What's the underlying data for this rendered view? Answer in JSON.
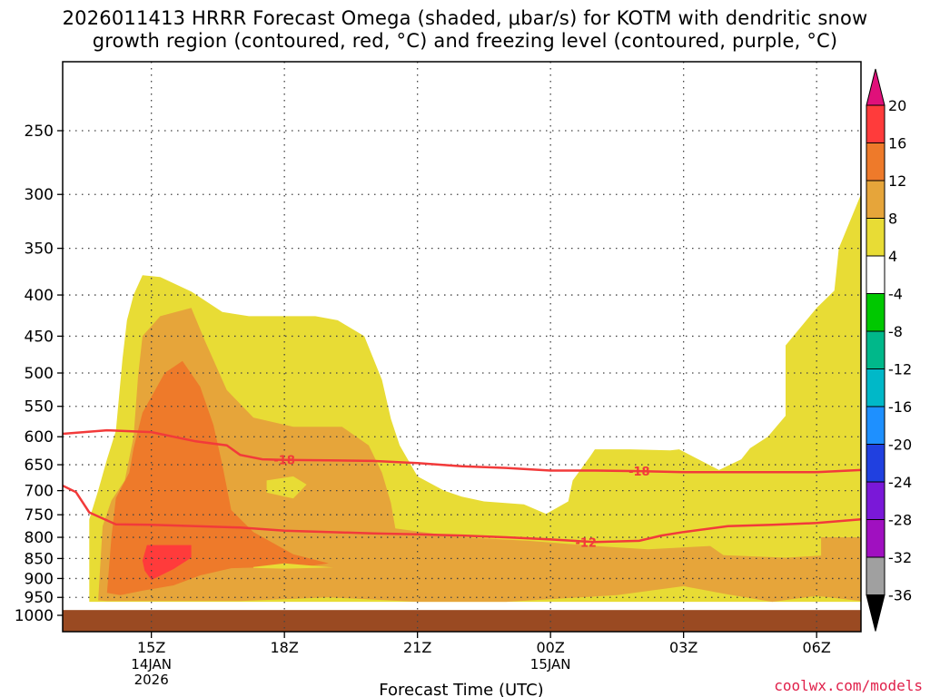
{
  "title_line1": "2026011413 HRRR Forecast Omega (shaded, μbar/s) for KOTM with dendritic snow",
  "title_line2": "growth region (contoured, red, °C) and freezing level (contoured, purple, °C)",
  "credit": "coolwx.com/models",
  "chart_data": {
    "type": "heatmap",
    "title": "2026011413 HRRR Forecast Omega (shaded, μbar/s) for KOTM with dendritic snow growth region (contoured, red, °C) and freezing level (contoured, purple, °C)",
    "xlabel": "Forecast Time (UTC)",
    "ylabel": "",
    "x_unit": "hours from 2026-01-14 13Z",
    "xlim": [
      0,
      18
    ],
    "ylim": [
      1000,
      200
    ],
    "y_scale": "log",
    "grid": true,
    "x_ticks": [
      {
        "x": 2,
        "label": "15Z",
        "sub": [
          "14JAN",
          "2026"
        ]
      },
      {
        "x": 5,
        "label": "18Z",
        "sub": []
      },
      {
        "x": 8,
        "label": "21Z",
        "sub": []
      },
      {
        "x": 11,
        "label": "00Z",
        "sub": [
          "15JAN"
        ]
      },
      {
        "x": 14,
        "label": "03Z",
        "sub": []
      },
      {
        "x": 17,
        "label": "06Z",
        "sub": []
      }
    ],
    "y_ticks": [
      250,
      300,
      350,
      400,
      450,
      500,
      550,
      600,
      650,
      700,
      750,
      800,
      850,
      900,
      950,
      1000
    ],
    "colorbar": {
      "unit": "μbar/s",
      "levels": [
        {
          "label": "20",
          "color": "#ff3b3b"
        },
        {
          "label": "16",
          "color": "#ee7a2a"
        },
        {
          "label": "12",
          "color": "#e6a53a"
        },
        {
          "label": "8",
          "color": "#e8dc35"
        },
        {
          "label": "4",
          "color": "#ffffff"
        },
        {
          "label": "-4",
          "color": "#00c800"
        },
        {
          "label": "-8",
          "color": "#00b88a"
        },
        {
          "label": "-12",
          "color": "#00b8c8"
        },
        {
          "label": "-16",
          "color": "#1e90ff"
        },
        {
          "label": "-20",
          "color": "#2040e0"
        },
        {
          "label": "-24",
          "color": "#7a18d8"
        },
        {
          "label": "-28",
          "color": "#a010c0"
        },
        {
          "label": "-32",
          "color": "#a0a0a0"
        },
        {
          "label": "-36",
          "color": ""
        }
      ],
      "top_arrow_color": "#e0107a",
      "bottom_arrow_color": "#000000"
    },
    "ground_color": "#9a4a22",
    "regions": [
      {
        "band": "4-8",
        "color": "#e8dc35",
        "polygon": [
          [
            0.6,
            962
          ],
          [
            0.6,
            760
          ],
          [
            0.8,
            700
          ],
          [
            1.0,
            640
          ],
          [
            1.2,
            590
          ],
          [
            1.35,
            480
          ],
          [
            1.45,
            430
          ],
          [
            1.6,
            400
          ],
          [
            1.8,
            378
          ],
          [
            2.2,
            380
          ],
          [
            2.9,
            396
          ],
          [
            3.6,
            420
          ],
          [
            4.2,
            425
          ],
          [
            5.7,
            425
          ],
          [
            6.2,
            430
          ],
          [
            6.8,
            450
          ],
          [
            7.2,
            510
          ],
          [
            7.4,
            570
          ],
          [
            7.6,
            615
          ],
          [
            8.0,
            672
          ],
          [
            8.6,
            700
          ],
          [
            9.0,
            712
          ],
          [
            9.5,
            722
          ],
          [
            10.4,
            728
          ],
          [
            10.9,
            748
          ],
          [
            11.4,
            722
          ],
          [
            11.5,
            680
          ],
          [
            11.9,
            634
          ],
          [
            12.0,
            622
          ],
          [
            12.8,
            622
          ],
          [
            13.7,
            624
          ],
          [
            13.9,
            622
          ],
          [
            14.8,
            660
          ],
          [
            15.3,
            640
          ],
          [
            15.5,
            620
          ],
          [
            15.9,
            600
          ],
          [
            16.3,
            565
          ],
          [
            16.3,
            462
          ],
          [
            16.8,
            428
          ],
          [
            17.0,
            415
          ],
          [
            17.4,
            395
          ],
          [
            17.5,
            350
          ],
          [
            18,
            300
          ],
          [
            18,
            962
          ]
        ]
      },
      {
        "band": "8-12",
        "color": "#e6a53a",
        "polygon": [
          [
            0.8,
            958
          ],
          [
            0.9,
            775
          ],
          [
            1.1,
            720
          ],
          [
            1.4,
            680
          ],
          [
            1.6,
            600
          ],
          [
            1.7,
            505
          ],
          [
            1.8,
            450
          ],
          [
            2.2,
            425
          ],
          [
            2.9,
            415
          ],
          [
            3.2,
            455
          ],
          [
            3.7,
            525
          ],
          [
            4.3,
            568
          ],
          [
            5.2,
            583
          ],
          [
            6.3,
            583
          ],
          [
            6.9,
            615
          ],
          [
            7.2,
            665
          ],
          [
            7.4,
            725
          ],
          [
            7.5,
            780
          ],
          [
            9.0,
            800
          ],
          [
            10.5,
            808
          ],
          [
            12.0,
            820
          ],
          [
            13.2,
            828
          ],
          [
            14.6,
            820
          ],
          [
            14.9,
            842
          ],
          [
            16.3,
            848
          ],
          [
            17.1,
            843
          ],
          [
            17.1,
            800
          ],
          [
            18,
            800
          ],
          [
            18,
            960
          ],
          [
            17,
            946
          ],
          [
            16,
            962
          ],
          [
            15,
            942
          ],
          [
            14,
            920
          ],
          [
            12.5,
            944
          ],
          [
            10.0,
            962
          ],
          [
            8.0,
            962
          ],
          [
            6.0,
            950
          ],
          [
            4.0,
            960
          ],
          [
            2.0,
            960
          ],
          [
            1.0,
            960
          ]
        ],
        "holes": [
          [
            [
              4.6,
              680
            ],
            [
              5.2,
              672
            ],
            [
              5.5,
              688
            ],
            [
              5.2,
              716
            ],
            [
              4.6,
              704
            ]
          ]
        ]
      },
      {
        "band": "12-16",
        "color": "#ee7a2a",
        "polygon": [
          [
            1.0,
            938
          ],
          [
            1.1,
            800
          ],
          [
            1.2,
            715
          ],
          [
            1.5,
            665
          ],
          [
            1.6,
            620
          ],
          [
            1.8,
            560
          ],
          [
            2.3,
            500
          ],
          [
            2.7,
            483
          ],
          [
            3.1,
            520
          ],
          [
            3.4,
            580
          ],
          [
            3.6,
            650
          ],
          [
            3.8,
            740
          ],
          [
            4.3,
            788
          ],
          [
            5.2,
            840
          ],
          [
            6.0,
            862
          ],
          [
            5.6,
            868
          ],
          [
            3.8,
            874
          ],
          [
            3.1,
            892
          ],
          [
            2.5,
            918
          ],
          [
            1.8,
            932
          ],
          [
            1.3,
            944
          ]
        ]
      },
      {
        "band": "16-20",
        "color": "#ff3b3b",
        "polygon": [
          [
            1.8,
            855
          ],
          [
            1.9,
            818
          ],
          [
            2.9,
            818
          ],
          [
            2.9,
            848
          ],
          [
            2.5,
            876
          ],
          [
            2.0,
            904
          ],
          [
            1.85,
            880
          ]
        ]
      },
      {
        "band": "4-8",
        "color": "#e8dc35",
        "polygon": [
          [
            4.3,
            871
          ],
          [
            5.0,
            862
          ],
          [
            6.1,
            872
          ],
          [
            5.0,
            875
          ],
          [
            4.3,
            873
          ]
        ]
      }
    ],
    "contours": [
      {
        "name": "dgz",
        "value": -18,
        "label": "-18",
        "color": "#f23a3a",
        "points": [
          [
            0,
            595
          ],
          [
            1.0,
            589
          ],
          [
            2.0,
            592
          ],
          [
            3.0,
            608
          ],
          [
            3.7,
            615
          ],
          [
            4.0,
            632
          ],
          [
            4.5,
            640
          ],
          [
            5.0,
            641
          ],
          [
            6.0,
            642
          ],
          [
            7.0,
            643
          ],
          [
            8.0,
            647
          ],
          [
            9.0,
            653
          ],
          [
            10.0,
            656
          ],
          [
            11.0,
            661
          ],
          [
            12.0,
            661
          ],
          [
            13.0,
            662
          ],
          [
            14.0,
            664
          ],
          [
            15.0,
            664
          ],
          [
            16.0,
            664
          ],
          [
            17.0,
            664
          ],
          [
            18,
            660
          ]
        ],
        "label_positions": [
          [
            5.0,
            641
          ],
          [
            13.0,
            662
          ]
        ]
      },
      {
        "name": "dgz",
        "value": -12,
        "label": "-12",
        "color": "#f23a3a",
        "points": [
          [
            0,
            690
          ],
          [
            0.3,
            703
          ],
          [
            0.6,
            745
          ],
          [
            1.2,
            771
          ],
          [
            2.0,
            772
          ],
          [
            3.0,
            775
          ],
          [
            4.0,
            778
          ],
          [
            5.0,
            785
          ],
          [
            6.0,
            788
          ],
          [
            7.0,
            791
          ],
          [
            8.0,
            793
          ],
          [
            9.0,
            796
          ],
          [
            10.0,
            800
          ],
          [
            11.0,
            805
          ],
          [
            12.0,
            811
          ],
          [
            13.0,
            808
          ],
          [
            13.5,
            796
          ],
          [
            14.0,
            788
          ],
          [
            15.0,
            775
          ],
          [
            16.0,
            772
          ],
          [
            17.0,
            768
          ],
          [
            18,
            760
          ]
        ],
        "label_positions": [
          [
            11.8,
            811
          ]
        ]
      }
    ]
  }
}
